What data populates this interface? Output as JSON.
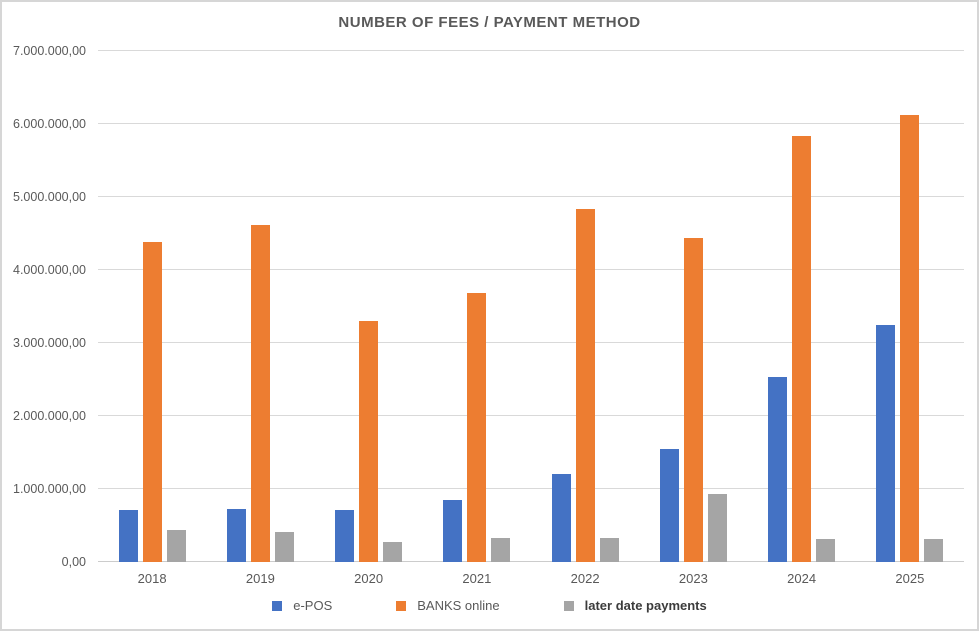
{
  "window": {
    "background": "#ffffff",
    "border_color": "#d6d6d6"
  },
  "chart_data": {
    "type": "bar",
    "title": "NUMBER OF FEES / PAYMENT METHOD",
    "categories": [
      "2018",
      "2019",
      "2020",
      "2021",
      "2022",
      "2023",
      "2024",
      "2025"
    ],
    "series": [
      {
        "name": "e-POS",
        "color": "#4472C4",
        "label_bold": false,
        "values": [
          710000,
          720000,
          710000,
          850000,
          1210000,
          1550000,
          2540000,
          3250000
        ]
      },
      {
        "name": "BANKS online",
        "color": "#ED7D31",
        "label_bold": false,
        "values": [
          4390000,
          4620000,
          3300000,
          3680000,
          4840000,
          4440000,
          5840000,
          6120000
        ]
      },
      {
        "name": "later date payments",
        "color": "#A5A5A5",
        "label_bold": true,
        "values": [
          440000,
          410000,
          280000,
          330000,
          330000,
          930000,
          320000,
          320000
        ]
      }
    ],
    "ylim": [
      0,
      7000000
    ],
    "ytick_interval": 1000000,
    "ytick_labels": [
      "0,00",
      "1.000.000,00",
      "2.000.000,00",
      "3.000.000,00",
      "4.000.000,00",
      "5.000.000,00",
      "6.000.000,00",
      "7.000.000,00"
    ],
    "grid": true,
    "legend_position": "bottom",
    "text_color": "#595959",
    "gridline_color": "#d9d9d9"
  }
}
